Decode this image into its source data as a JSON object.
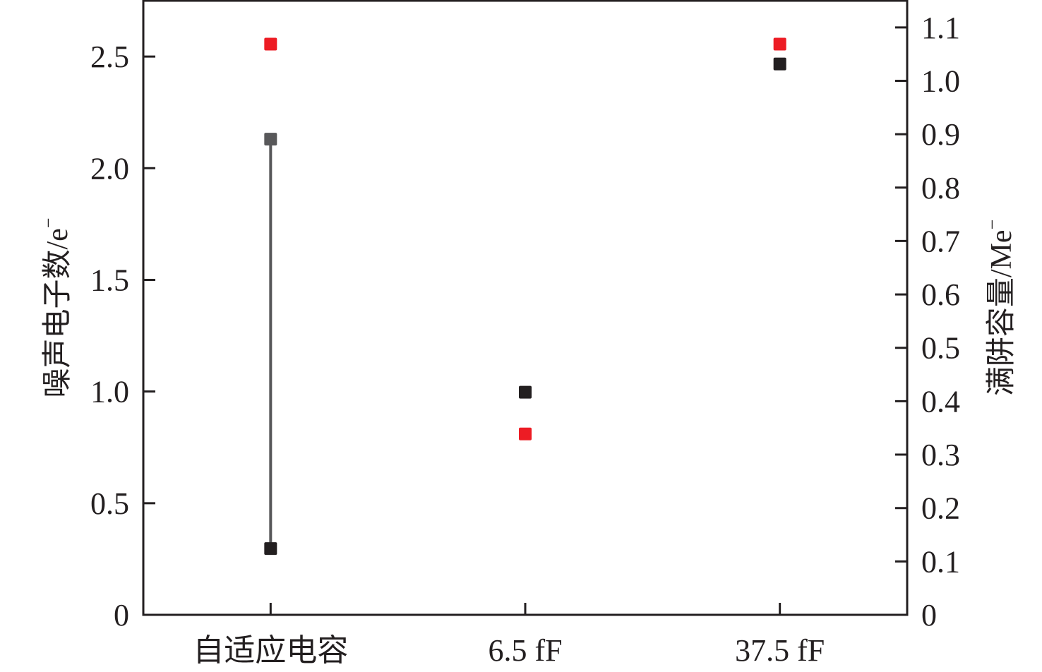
{
  "chart_data": {
    "type": "scatter",
    "title": "",
    "categories": [
      "自适应电容",
      "6.5 fF",
      "37.5 fF"
    ],
    "left_axis": {
      "label": "噪声电子数/e",
      "label_superscript": "−",
      "ylim": [
        0,
        2.75
      ],
      "ticks": [
        0,
        0.5,
        1.0,
        1.5,
        2.0,
        2.5
      ],
      "tick_labels": [
        "0",
        "0.5",
        "1.0",
        "1.5",
        "2.0",
        "2.5"
      ]
    },
    "right_axis": {
      "label": "满阱容量/Me",
      "label_superscript": "−",
      "ylim": [
        0,
        1.15
      ],
      "ticks": [
        0,
        0.1,
        0.2,
        0.3,
        0.4,
        0.5,
        0.6,
        0.7,
        0.8,
        0.9,
        1.0,
        1.1
      ],
      "tick_labels": [
        "0",
        "0.1",
        "0.2",
        "0.3",
        "0.4",
        "0.5",
        "0.6",
        "0.7",
        "0.8",
        "0.9",
        "1.0",
        "1.1"
      ]
    },
    "series": [
      {
        "axis": "left",
        "color": "#231f20",
        "values": [
          0.3,
          1.0,
          2.47
        ]
      },
      {
        "axis": "right",
        "color": "#ed1c24",
        "values": [
          1.07,
          0.34,
          1.07
        ]
      }
    ],
    "range_bar": {
      "category": "自适应电容",
      "axis": "left",
      "low": 0.3,
      "high": 2.13,
      "color": "#58585a"
    },
    "grid": false,
    "legend": "none"
  }
}
